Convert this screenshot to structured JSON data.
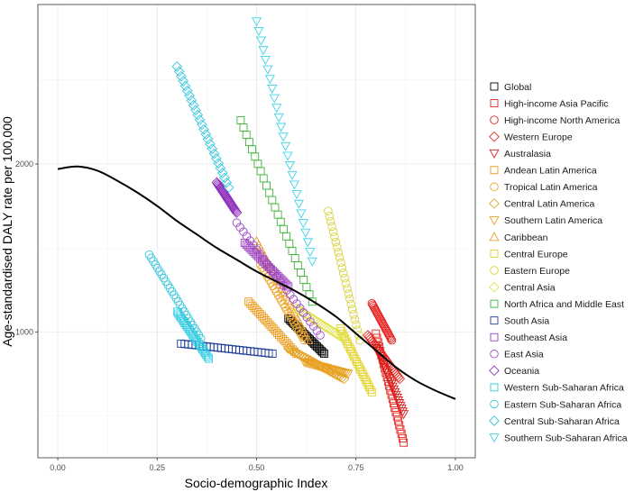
{
  "chart_data": {
    "type": "scatter",
    "title": "",
    "xlabel": "Socio-demographic Index",
    "ylabel": "Age-standardised DALY rate per 100,000",
    "xlim": [
      -0.05,
      1.05
    ],
    "ylim": [
      250,
      2950
    ],
    "xticks": [
      0.0,
      0.25,
      0.5,
      0.75,
      1.0
    ],
    "xtick_labels": [
      "0.00",
      "0.25",
      "0.50",
      "0.75",
      "1.00"
    ],
    "yticks": [
      1000,
      2000
    ],
    "ytick_labels": [
      "1000",
      "2000"
    ],
    "grid": true,
    "legend_position": "right",
    "curve": {
      "name": "",
      "color": "#000000",
      "x": [
        0.0,
        0.05,
        0.1,
        0.15,
        0.2,
        0.25,
        0.3,
        0.35,
        0.4,
        0.45,
        0.5,
        0.55,
        0.6,
        0.65,
        0.7,
        0.75,
        0.8,
        0.85,
        0.9,
        0.95,
        1.0
      ],
      "y": [
        1970,
        1985,
        1960,
        1900,
        1830,
        1750,
        1660,
        1580,
        1500,
        1430,
        1360,
        1300,
        1240,
        1170,
        1090,
        990,
        890,
        790,
        710,
        650,
        600
      ]
    },
    "series": [
      {
        "name": "Global",
        "marker": "square",
        "color": "#000000",
        "x_range": [
          0.58,
          0.67
        ],
        "y_range": [
          1080,
          870
        ],
        "n": 26
      },
      {
        "name": "High-income Asia Pacific",
        "marker": "square",
        "color": "#e7251d",
        "x_range": [
          0.8,
          0.87
        ],
        "y_range": [
          990,
          340
        ],
        "n": 26
      },
      {
        "name": "High-income North America",
        "marker": "circle",
        "color": "#e52321",
        "x_range": [
          0.79,
          0.84
        ],
        "y_range": [
          1170,
          950
        ],
        "n": 26
      },
      {
        "name": "Western Europe",
        "marker": "diamond",
        "color": "#e52c22",
        "x_range": [
          0.78,
          0.86
        ],
        "y_range": [
          980,
          720
        ],
        "n": 26
      },
      {
        "name": "Australasia",
        "marker": "triangle-down",
        "color": "#d71c1c",
        "x_range": [
          0.8,
          0.87
        ],
        "y_range": [
          920,
          510
        ],
        "n": 26
      },
      {
        "name": "Andean Latin America",
        "marker": "square",
        "color": "#ec9a1c",
        "x_range": [
          0.48,
          0.6
        ],
        "y_range": [
          1180,
          870
        ],
        "n": 26
      },
      {
        "name": "Tropical Latin America",
        "marker": "circle",
        "color": "#f0a728",
        "x_range": [
          0.51,
          0.62
        ],
        "y_range": [
          1400,
          950
        ],
        "n": 26
      },
      {
        "name": "Central Latin America",
        "marker": "diamond",
        "color": "#e4a52b",
        "x_range": [
          0.58,
          0.72
        ],
        "y_range": [
          900,
          720
        ],
        "n": 26
      },
      {
        "name": "Southern Latin America",
        "marker": "triangle-down",
        "color": "#e8a020",
        "x_range": [
          0.62,
          0.73
        ],
        "y_range": [
          820,
          750
        ],
        "n": 26
      },
      {
        "name": "Caribbean",
        "marker": "triangle-up",
        "color": "#eba12a",
        "x_range": [
          0.5,
          0.63
        ],
        "y_range": [
          1540,
          950
        ],
        "n": 26
      },
      {
        "name": "Central Europe",
        "marker": "square",
        "color": "#e3d328",
        "x_range": [
          0.71,
          0.79
        ],
        "y_range": [
          1020,
          640
        ],
        "n": 26
      },
      {
        "name": "Eastern Europe",
        "marker": "circle",
        "color": "#d8d33e",
        "x_range": [
          0.68,
          0.76
        ],
        "y_range": [
          1720,
          950
        ],
        "n": 26
      },
      {
        "name": "Central Asia",
        "marker": "diamond",
        "color": "#e0e34d",
        "x_range": [
          0.6,
          0.72
        ],
        "y_range": [
          1140,
          960
        ],
        "n": 26
      },
      {
        "name": "North Africa and Middle East",
        "marker": "square",
        "color": "#3cb43a",
        "x_range": [
          0.46,
          0.64
        ],
        "y_range": [
          2260,
          1180
        ],
        "n": 26
      },
      {
        "name": "South Asia",
        "marker": "square",
        "color": "#1e3d9a",
        "x_range": [
          0.31,
          0.54
        ],
        "y_range": [
          930,
          870
        ],
        "n": 26
      },
      {
        "name": "Southeast Asia",
        "marker": "square",
        "color": "#9c3fc0",
        "x_range": [
          0.47,
          0.58
        ],
        "y_range": [
          1530,
          1270
        ],
        "n": 26
      },
      {
        "name": "East Asia",
        "marker": "circle",
        "color": "#9e4bc6",
        "x_range": [
          0.45,
          0.66
        ],
        "y_range": [
          1650,
          980
        ],
        "n": 26
      },
      {
        "name": "Oceania",
        "marker": "diamond",
        "color": "#8e2fbc",
        "x_range": [
          0.4,
          0.45
        ],
        "y_range": [
          1890,
          1710
        ],
        "n": 26
      },
      {
        "name": "Western Sub-Saharan Africa",
        "marker": "square",
        "color": "#2fcde4",
        "x_range": [
          0.3,
          0.38
        ],
        "y_range": [
          1120,
          840
        ],
        "n": 26
      },
      {
        "name": "Eastern Sub-Saharan Africa",
        "marker": "circle",
        "color": "#37c7dc",
        "x_range": [
          0.23,
          0.36
        ],
        "y_range": [
          1460,
          960
        ],
        "n": 26
      },
      {
        "name": "Central Sub-Saharan Africa",
        "marker": "diamond",
        "color": "#33c6df",
        "x_range": [
          0.3,
          0.43
        ],
        "y_range": [
          2580,
          1860
        ],
        "n": 26
      },
      {
        "name": "Southern Sub-Saharan Africa",
        "marker": "triangle-down",
        "color": "#3ed3e6",
        "x_range": [
          0.5,
          0.64
        ],
        "y_range": [
          2850,
          1420
        ],
        "n": 26
      }
    ]
  }
}
